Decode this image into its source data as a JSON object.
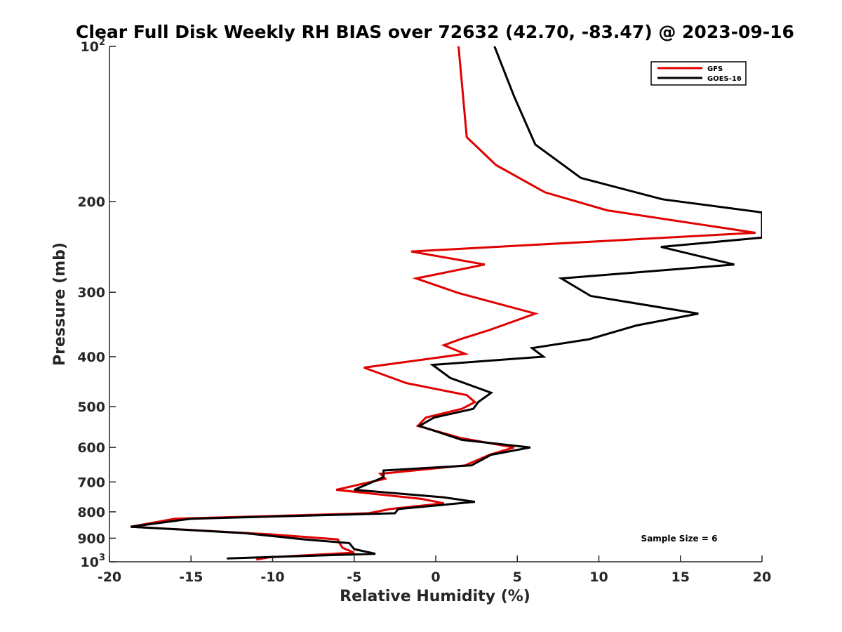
{
  "chart_data": {
    "type": "line",
    "title": "Clear Full Disk Weekly RH BIAS over 72632 (42.70, -83.47) @ 2023-09-16",
    "xlabel": "Relative Humidity (%)",
    "ylabel": "Pressure (mb)",
    "xlim": [
      -20,
      20
    ],
    "ylim": [
      100,
      1000
    ],
    "y_scale": "log",
    "y_reversed": true,
    "x_ticks": [
      -20,
      -15,
      -10,
      -5,
      0,
      5,
      10,
      15,
      20
    ],
    "x_tick_labels": [
      "-20",
      "-15",
      "-10",
      "-5",
      "0",
      "5",
      "10",
      "15",
      "20"
    ],
    "y_ticks": [
      100,
      200,
      300,
      400,
      500,
      600,
      700,
      800,
      900,
      1000
    ],
    "y_tick_labels": [
      {
        "base": "10",
        "exp": "2"
      },
      {
        "base": "200",
        "exp": ""
      },
      {
        "base": "300",
        "exp": ""
      },
      {
        "base": "400",
        "exp": ""
      },
      {
        "base": "500",
        "exp": ""
      },
      {
        "base": "600",
        "exp": ""
      },
      {
        "base": "700",
        "exp": ""
      },
      {
        "base": "800",
        "exp": ""
      },
      {
        "base": "900",
        "exp": ""
      },
      {
        "base": "10",
        "exp": "3"
      }
    ],
    "grid": false,
    "legend_position": "top-right",
    "annotation": "Sample Size = 6",
    "series": [
      {
        "name": "GFS",
        "color": "#e00000",
        "points": [
          [
            1.4,
            100
          ],
          [
            1.9,
            150
          ],
          [
            3.7,
            170
          ],
          [
            6.7,
            192
          ],
          [
            10.5,
            208
          ],
          [
            19.6,
            230
          ],
          [
            -1.5,
            250
          ],
          [
            3.0,
            265
          ],
          [
            -1.2,
            282
          ],
          [
            1.4,
            301
          ],
          [
            6.1,
            330
          ],
          [
            3.3,
            355
          ],
          [
            1.5,
            370
          ],
          [
            0.5,
            380
          ],
          [
            1.8,
            395
          ],
          [
            -4.4,
            420
          ],
          [
            -1.8,
            450
          ],
          [
            1.9,
            475
          ],
          [
            2.4,
            490
          ],
          [
            1.6,
            505
          ],
          [
            -0.6,
            525
          ],
          [
            -1.1,
            545
          ],
          [
            1.5,
            575
          ],
          [
            4.8,
            600
          ],
          [
            3.3,
            620
          ],
          [
            1.8,
            650
          ],
          [
            -3.4,
            675
          ],
          [
            -3.1,
            690
          ],
          [
            -6.1,
            725
          ],
          [
            -0.9,
            755
          ],
          [
            0.5,
            770
          ],
          [
            -2.8,
            790
          ],
          [
            -4.1,
            805
          ],
          [
            -16.0,
            825
          ],
          [
            -18.7,
            855
          ],
          [
            -10.0,
            885
          ],
          [
            -6.0,
            905
          ],
          [
            -5.9,
            920
          ],
          [
            -5.7,
            940
          ],
          [
            -5.0,
            960
          ],
          [
            -10.2,
            980
          ],
          [
            -11.0,
            990
          ]
        ]
      },
      {
        "name": "GOES-16",
        "color": "#000000",
        "points": [
          [
            3.6,
            100
          ],
          [
            4.8,
            125
          ],
          [
            6.1,
            155
          ],
          [
            8.9,
            180
          ],
          [
            13.9,
            198
          ],
          [
            20.0,
            210
          ],
          [
            20.0,
            235
          ],
          [
            13.8,
            245
          ],
          [
            18.3,
            265
          ],
          [
            7.7,
            282
          ],
          [
            9.5,
            305
          ],
          [
            16.1,
            330
          ],
          [
            12.3,
            348
          ],
          [
            9.4,
            370
          ],
          [
            5.9,
            385
          ],
          [
            6.6,
            400
          ],
          [
            -0.2,
            415
          ],
          [
            0.9,
            440
          ],
          [
            3.4,
            470
          ],
          [
            2.6,
            490
          ],
          [
            2.3,
            505
          ],
          [
            -0.1,
            525
          ],
          [
            -1.0,
            545
          ],
          [
            1.6,
            580
          ],
          [
            5.8,
            600
          ],
          [
            3.4,
            620
          ],
          [
            2.2,
            650
          ],
          [
            -3.2,
            665
          ],
          [
            -3.2,
            685
          ],
          [
            -4.1,
            705
          ],
          [
            -5.0,
            725
          ],
          [
            0.5,
            750
          ],
          [
            2.4,
            765
          ],
          [
            -2.3,
            790
          ],
          [
            -2.5,
            805
          ],
          [
            -15.0,
            825
          ],
          [
            -18.7,
            855
          ],
          [
            -11.7,
            880
          ],
          [
            -8.0,
            905
          ],
          [
            -5.3,
            920
          ],
          [
            -5.0,
            945
          ],
          [
            -3.7,
            965
          ],
          [
            -12.8,
            985
          ]
        ]
      }
    ]
  }
}
